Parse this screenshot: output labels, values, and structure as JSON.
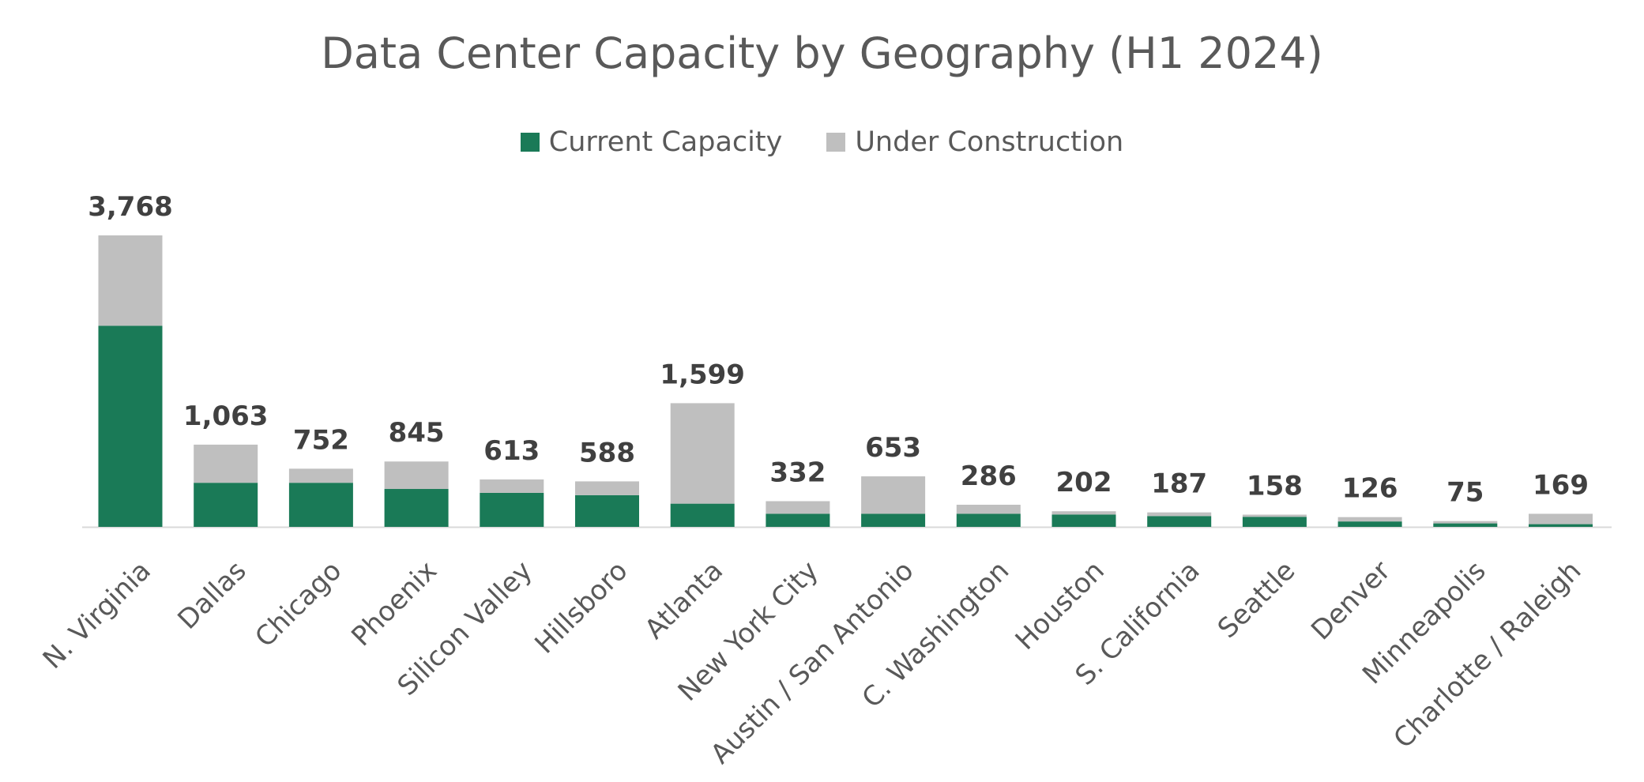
{
  "chart_data": {
    "type": "bar",
    "stacked": true,
    "title": "Data Center Capacity by Geography (H1 2024)",
    "xlabel": "",
    "ylabel": "",
    "ylim": [
      0,
      3768
    ],
    "grid": false,
    "legend_position": "top",
    "categories": [
      "N. Virginia",
      "Dallas",
      "Chicago",
      "Phoenix",
      "Silicon Valley",
      "Hillsboro",
      "Atlanta",
      "New York City",
      "Austin / San Antonio",
      "C. Washington",
      "Houston",
      "S. California",
      "Seattle",
      "Denver",
      "Minneapolis",
      "Charlotte / Raleigh"
    ],
    "series": [
      {
        "name": "Current Capacity",
        "color": "#1a7a57",
        "values": [
          2600,
          570,
          570,
          490,
          440,
          410,
          300,
          170,
          170,
          170,
          160,
          140,
          130,
          70,
          45,
          35
        ]
      },
      {
        "name": "Under Construction",
        "color": "#bfbfbf",
        "values": [
          1168,
          493,
          182,
          355,
          173,
          178,
          1299,
          162,
          483,
          116,
          42,
          47,
          28,
          56,
          30,
          134
        ]
      }
    ],
    "totals": [
      "3,768",
      "1,063",
      "752",
      "845",
      "613",
      "588",
      "1,599",
      "332",
      "653",
      "286",
      "202",
      "187",
      "158",
      "126",
      "75",
      "169"
    ]
  }
}
